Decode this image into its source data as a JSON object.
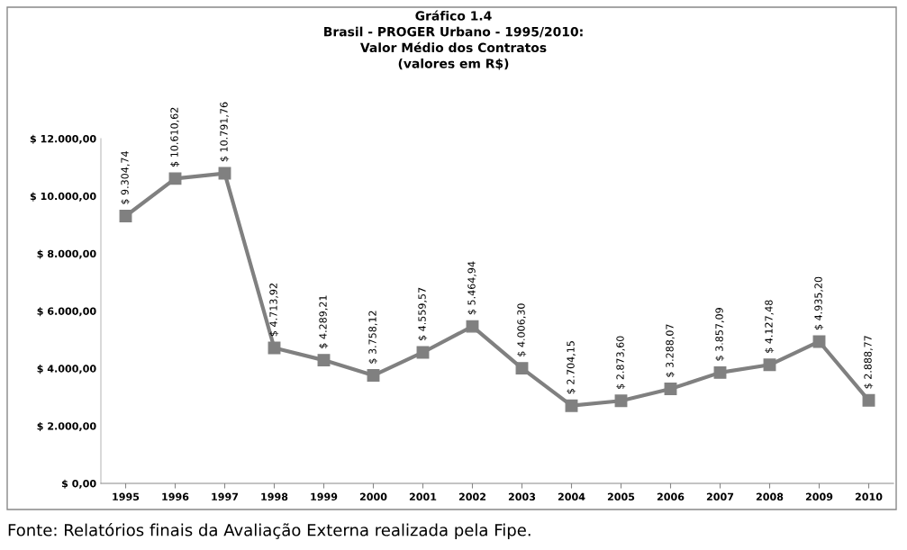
{
  "chart_data": {
    "type": "line",
    "title": "Gráfico 1.4\nBrasil - PROGER Urbano - 1995/2010:\nValor Médio dos Contratos\n(valores em R$)",
    "categories": [
      "1995",
      "1996",
      "1997",
      "1998",
      "1999",
      "2000",
      "2001",
      "2002",
      "2003",
      "2004",
      "2005",
      "2006",
      "2007",
      "2008",
      "2009",
      "2010"
    ],
    "series": [
      {
        "color": "#808080",
        "values": [
          9304.74,
          10610.62,
          10791.76,
          4713.92,
          4289.21,
          3758.12,
          4559.57,
          5464.94,
          4006.3,
          2704.15,
          2873.6,
          3288.07,
          3857.09,
          4127.48,
          4935.2,
          2888.77
        ],
        "value_labels": [
          "$ 9.304,74",
          "$ 10.610,62",
          "$ 10.791,76",
          "$ 4.713,92",
          "$ 4.289,21",
          "$ 3.758,12",
          "$ 4.559,57",
          "$ 5.464,94",
          "$ 4.006,30",
          "$ 2.704,15",
          "$ 2.873,60",
          "$ 3.288,07",
          "$ 3.857,09",
          "$ 4.127,48",
          "$ 4.935,20",
          "$ 2.888,77"
        ]
      }
    ],
    "ylim": [
      0,
      12000
    ],
    "yticks": [
      {
        "value": 0,
        "label": "$ 0,00"
      },
      {
        "value": 2000,
        "label": "$ 2.000,00"
      },
      {
        "value": 4000,
        "label": "$ 4.000,00"
      },
      {
        "value": 6000,
        "label": "$ 6.000,00"
      },
      {
        "value": 8000,
        "label": "$ 8.000,00"
      },
      {
        "value": 10000,
        "label": "$ 10.000,00"
      },
      {
        "value": 12000,
        "label": "$ 12.000,00"
      }
    ],
    "marker": "square",
    "line_style": "solid",
    "grid": false,
    "legend": false,
    "annotations": [
      "Fonte: Relatórios finais da Avaliação Externa realizada pela Fipe."
    ]
  }
}
